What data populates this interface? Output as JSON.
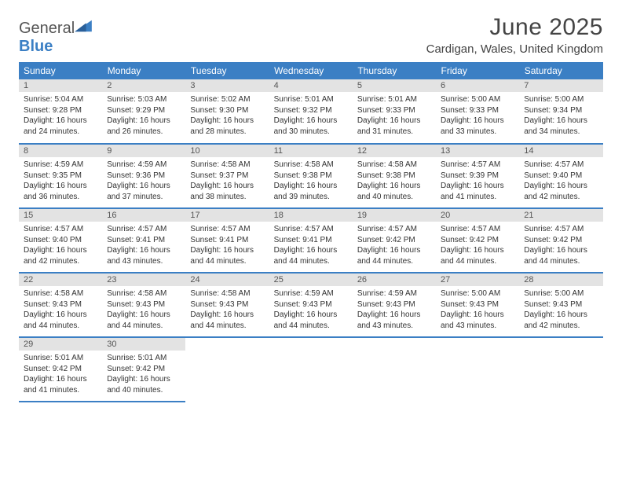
{
  "logo": {
    "word1": "General",
    "word2": "Blue"
  },
  "title": "June 2025",
  "location": "Cardigan, Wales, United Kingdom",
  "colors": {
    "accent": "#3b7fc4",
    "header_bg": "#3b7fc4",
    "header_text": "#ffffff",
    "daynum_bg": "#e3e3e3",
    "body_text": "#333333",
    "page_bg": "#ffffff"
  },
  "fonts": {
    "title_size": 30,
    "location_size": 15,
    "th_size": 12,
    "cell_size": 10
  },
  "headers": [
    "Sunday",
    "Monday",
    "Tuesday",
    "Wednesday",
    "Thursday",
    "Friday",
    "Saturday"
  ],
  "days": [
    {
      "n": "1",
      "sr": "5:04 AM",
      "ss": "9:28 PM",
      "dl": "16 hours and 24 minutes."
    },
    {
      "n": "2",
      "sr": "5:03 AM",
      "ss": "9:29 PM",
      "dl": "16 hours and 26 minutes."
    },
    {
      "n": "3",
      "sr": "5:02 AM",
      "ss": "9:30 PM",
      "dl": "16 hours and 28 minutes."
    },
    {
      "n": "4",
      "sr": "5:01 AM",
      "ss": "9:32 PM",
      "dl": "16 hours and 30 minutes."
    },
    {
      "n": "5",
      "sr": "5:01 AM",
      "ss": "9:33 PM",
      "dl": "16 hours and 31 minutes."
    },
    {
      "n": "6",
      "sr": "5:00 AM",
      "ss": "9:33 PM",
      "dl": "16 hours and 33 minutes."
    },
    {
      "n": "7",
      "sr": "5:00 AM",
      "ss": "9:34 PM",
      "dl": "16 hours and 34 minutes."
    },
    {
      "n": "8",
      "sr": "4:59 AM",
      "ss": "9:35 PM",
      "dl": "16 hours and 36 minutes."
    },
    {
      "n": "9",
      "sr": "4:59 AM",
      "ss": "9:36 PM",
      "dl": "16 hours and 37 minutes."
    },
    {
      "n": "10",
      "sr": "4:58 AM",
      "ss": "9:37 PM",
      "dl": "16 hours and 38 minutes."
    },
    {
      "n": "11",
      "sr": "4:58 AM",
      "ss": "9:38 PM",
      "dl": "16 hours and 39 minutes."
    },
    {
      "n": "12",
      "sr": "4:58 AM",
      "ss": "9:38 PM",
      "dl": "16 hours and 40 minutes."
    },
    {
      "n": "13",
      "sr": "4:57 AM",
      "ss": "9:39 PM",
      "dl": "16 hours and 41 minutes."
    },
    {
      "n": "14",
      "sr": "4:57 AM",
      "ss": "9:40 PM",
      "dl": "16 hours and 42 minutes."
    },
    {
      "n": "15",
      "sr": "4:57 AM",
      "ss": "9:40 PM",
      "dl": "16 hours and 42 minutes."
    },
    {
      "n": "16",
      "sr": "4:57 AM",
      "ss": "9:41 PM",
      "dl": "16 hours and 43 minutes."
    },
    {
      "n": "17",
      "sr": "4:57 AM",
      "ss": "9:41 PM",
      "dl": "16 hours and 44 minutes."
    },
    {
      "n": "18",
      "sr": "4:57 AM",
      "ss": "9:41 PM",
      "dl": "16 hours and 44 minutes."
    },
    {
      "n": "19",
      "sr": "4:57 AM",
      "ss": "9:42 PM",
      "dl": "16 hours and 44 minutes."
    },
    {
      "n": "20",
      "sr": "4:57 AM",
      "ss": "9:42 PM",
      "dl": "16 hours and 44 minutes."
    },
    {
      "n": "21",
      "sr": "4:57 AM",
      "ss": "9:42 PM",
      "dl": "16 hours and 44 minutes."
    },
    {
      "n": "22",
      "sr": "4:58 AM",
      "ss": "9:43 PM",
      "dl": "16 hours and 44 minutes."
    },
    {
      "n": "23",
      "sr": "4:58 AM",
      "ss": "9:43 PM",
      "dl": "16 hours and 44 minutes."
    },
    {
      "n": "24",
      "sr": "4:58 AM",
      "ss": "9:43 PM",
      "dl": "16 hours and 44 minutes."
    },
    {
      "n": "25",
      "sr": "4:59 AM",
      "ss": "9:43 PM",
      "dl": "16 hours and 44 minutes."
    },
    {
      "n": "26",
      "sr": "4:59 AM",
      "ss": "9:43 PM",
      "dl": "16 hours and 43 minutes."
    },
    {
      "n": "27",
      "sr": "5:00 AM",
      "ss": "9:43 PM",
      "dl": "16 hours and 43 minutes."
    },
    {
      "n": "28",
      "sr": "5:00 AM",
      "ss": "9:43 PM",
      "dl": "16 hours and 42 minutes."
    },
    {
      "n": "29",
      "sr": "5:01 AM",
      "ss": "9:42 PM",
      "dl": "16 hours and 41 minutes."
    },
    {
      "n": "30",
      "sr": "5:01 AM",
      "ss": "9:42 PM",
      "dl": "16 hours and 40 minutes."
    }
  ],
  "labels": {
    "sunrise": "Sunrise:",
    "sunset": "Sunset:",
    "daylight": "Daylight:"
  }
}
